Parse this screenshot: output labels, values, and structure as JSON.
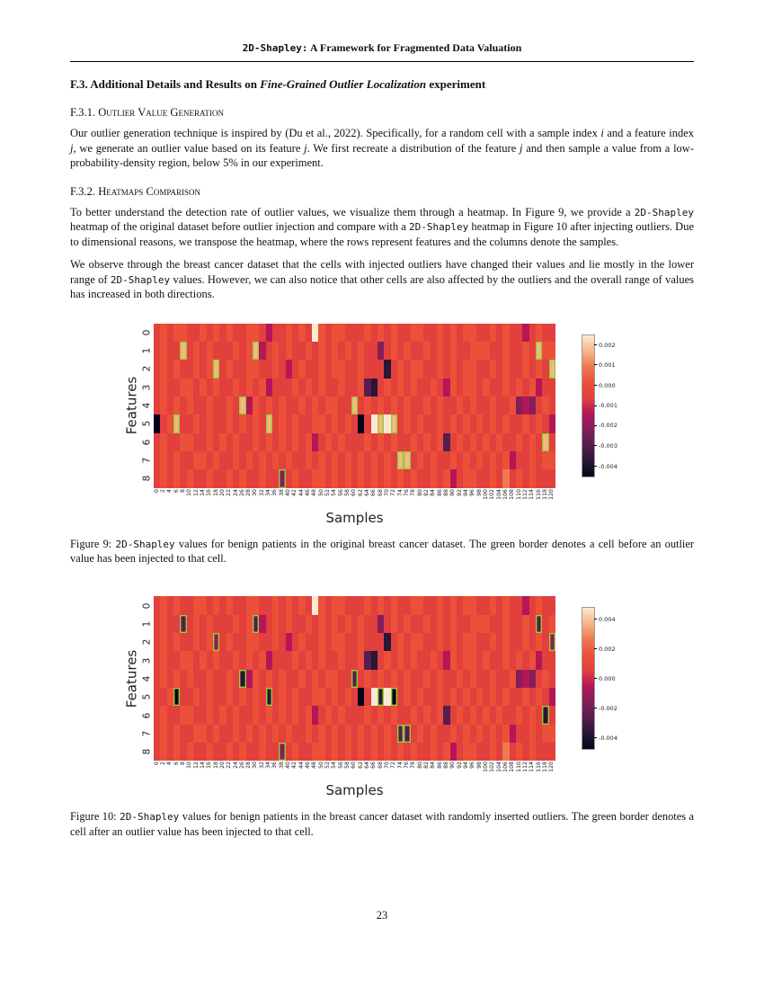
{
  "header": {
    "title_mono": "2D-Shapley:",
    "title_rest": " A Framework for Fragmented Data Valuation"
  },
  "section_f3": {
    "prefix": "F.3. Additional Details and Results on ",
    "italic": "Fine-Grained Outlier Localization",
    "suffix": " experiment"
  },
  "subsection_f31": {
    "number": "F.3.1. ",
    "title": "Outlier Value Generation"
  },
  "subsection_f32": {
    "number": "F.3.2. ",
    "title": "Heatmaps Comparison"
  },
  "paragraphs": {
    "p1": {
      "s1": "Our outlier generation technique is inspired by ",
      "cite": "(Du et al., 2022)",
      "s2": ". Specifically, for a random cell with a sample index ",
      "i1": "i",
      "s3": " and a feature index ",
      "j1": "j",
      "s4": ", we generate an outlier value based on its feature ",
      "j2": "j",
      "s5": ". We first recreate a distribution of the feature ",
      "j3": "j",
      "s6": " and then sample a value from a low-probability-density region, below 5% in our experiment."
    },
    "p2": {
      "s1": "To better understand the detection rate of outlier values, we visualize them through a heatmap. In Figure 9, we provide a ",
      "m1": "2D-Shapley",
      "s2": " heatmap of the original dataset before outlier injection and compare with a ",
      "m2": "2D-Shapley",
      "s3": " heatmap in Figure 10 after injecting outliers. Due to dimensional reasons, we transpose the heatmap, where the rows represent features and the columns denote the samples."
    },
    "p3": {
      "s1": "We observe through the breast cancer dataset that the cells with injected outliers have changed their values and lie mostly in the lower range of ",
      "m1": "2D-Shapley",
      "s2": " values. However, we can also notice that other cells are also affected by the outliers and the overall range of values has increased in both directions."
    }
  },
  "captions": {
    "fig9": {
      "s1": "Figure 9: ",
      "m1": "2D-Shapley",
      "s2": " values for benign patients in the original breast cancer dataset. The green border denotes a cell before an outlier value has been injected to that cell."
    },
    "fig10": {
      "s1": "Figure 10: ",
      "m1": "2D-Shapley",
      "s2": " values for benign patients in the breast cancer dataset with randomly inserted outliers. The green border denotes a cell after an outlier value has been injected to that cell."
    }
  },
  "page_number": "23",
  "palette": [
    "#03051a",
    "#2a1636",
    "#551e4f",
    "#841e5a",
    "#b41658",
    "#e2403d",
    "#ec5038",
    "#f0784f",
    "#f5b78a",
    "#fbe8d3"
  ],
  "outlier_border_color": "#9acd32",
  "chart_data": [
    {
      "type": "heatmap",
      "figure": "Figure 9",
      "xlabel": "Samples",
      "ylabel": "Features",
      "y_ticks": [
        "0",
        "1",
        "2",
        "3",
        "4",
        "5",
        "6",
        "7",
        "8"
      ],
      "x_ticks": [
        "0",
        "2",
        "4",
        "6",
        "8",
        "10",
        "12",
        "14",
        "16",
        "18",
        "20",
        "22",
        "24",
        "26",
        "28",
        "30",
        "32",
        "34",
        "36",
        "38",
        "40",
        "42",
        "44",
        "46",
        "48",
        "50",
        "52",
        "54",
        "56",
        "58",
        "60",
        "62",
        "64",
        "66",
        "68",
        "70",
        "72",
        "74",
        "76",
        "78",
        "80",
        "82",
        "84",
        "86",
        "88",
        "90",
        "92",
        "94",
        "96",
        "98",
        "100",
        "102",
        "104",
        "106",
        "108",
        "110",
        "112",
        "114",
        "116",
        "118",
        "120"
      ],
      "value_range": [
        -0.0045,
        0.0025
      ],
      "level_values": [
        -0.0045,
        -0.0035,
        -0.0025,
        -0.0015,
        -0.0005,
        0.0005,
        0.0008,
        0.0012,
        0.0018,
        0.0024
      ],
      "colorbar": {
        "gradient": [
          "#fbe8d3",
          "#f5b78a",
          "#f0784f",
          "#ec5038",
          "#e2403d",
          "#b41658",
          "#841e5a",
          "#551e4f",
          "#2a1636",
          "#03051a"
        ],
        "ticks": [
          {
            "label": "0.002",
            "pos": 7
          },
          {
            "label": "0.001",
            "pos": 21.3
          },
          {
            "label": "0.000",
            "pos": 35.7
          },
          {
            "label": "-0.001",
            "pos": 50
          },
          {
            "label": "-0.002",
            "pos": 64.3
          },
          {
            "label": "-0.003",
            "pos": 78.6
          },
          {
            "label": "-0.004",
            "pos": 93
          }
        ]
      },
      "cells": [
        [
          "5656655656",
          "5655665455",
          "6565965665",
          "5565656556",
          "6556565665",
          "5656554565",
          "5"
        ],
        [
          "5655856565",
          "5565684565",
          "6556565656",
          "5655356565",
          "5656565566",
          "6556556586",
          "6"
        ],
        [
          "5656556568",
          "5655665565",
          "4565565665",
          "5655515656",
          "6556565665",
          "5656556565",
          "8"
        ],
        [
          "5655665656",
          "5565656455",
          "5656565565",
          "5621565656",
          "5565465665",
          "6556565645",
          "5"
        ],
        [
          "5656565565",
          "5658465656",
          "5565656655",
          "8565656565",
          "5656556565",
          "5655634356",
          "5"
        ],
        [
          "0568556565",
          "5656565856",
          "5655665656",
          "5059898565",
          "6556565656",
          "5656556565",
          "4"
        ],
        [
          "5655665565",
          "6565565656",
          "5656456565",
          "5565656556",
          "5656256565",
          "6565565658",
          "5"
        ],
        [
          "5656556656",
          "5565656565",
          "6556565656",
          "5656565885",
          "6565565656",
          "5656455656",
          "6"
        ],
        [
          "5656565565",
          "5656556553",
          "5655665656",
          "5656565656",
          "5565645665",
          "5657565655",
          "5"
        ]
      ],
      "outlier_cells": [
        [
          1,
          4
        ],
        [
          1,
          15
        ],
        [
          1,
          58
        ],
        [
          2,
          9
        ],
        [
          2,
          60
        ],
        [
          4,
          13
        ],
        [
          4,
          30
        ],
        [
          5,
          3
        ],
        [
          5,
          17
        ],
        [
          5,
          34
        ],
        [
          5,
          36
        ],
        [
          6,
          59
        ],
        [
          7,
          37
        ],
        [
          7,
          38
        ],
        [
          8,
          19
        ]
      ]
    },
    {
      "type": "heatmap",
      "figure": "Figure 10",
      "xlabel": "Samples",
      "ylabel": "Features",
      "y_ticks": [
        "0",
        "1",
        "2",
        "3",
        "4",
        "5",
        "6",
        "7",
        "8"
      ],
      "x_ticks": [
        "0",
        "2",
        "4",
        "6",
        "8",
        "10",
        "12",
        "14",
        "16",
        "18",
        "20",
        "22",
        "24",
        "26",
        "28",
        "30",
        "32",
        "34",
        "36",
        "38",
        "40",
        "42",
        "44",
        "46",
        "48",
        "50",
        "52",
        "54",
        "56",
        "58",
        "60",
        "62",
        "64",
        "66",
        "68",
        "70",
        "72",
        "74",
        "76",
        "78",
        "80",
        "82",
        "84",
        "86",
        "88",
        "90",
        "92",
        "94",
        "96",
        "98",
        "100",
        "102",
        "104",
        "106",
        "108",
        "110",
        "112",
        "114",
        "116",
        "118",
        "120"
      ],
      "value_range": [
        -0.005,
        0.0045
      ],
      "level_values": [
        -0.005,
        -0.004,
        -0.003,
        -0.0015,
        -0.0005,
        0.0006,
        0.001,
        0.0018,
        0.003,
        0.0042
      ],
      "colorbar": {
        "gradient": [
          "#fbe8d3",
          "#f5b78a",
          "#f0784f",
          "#ec5038",
          "#e2403d",
          "#b41658",
          "#841e5a",
          "#551e4f",
          "#2a1636",
          "#03051a"
        ],
        "ticks": [
          {
            "label": "0.004",
            "pos": 8
          },
          {
            "label": "0.002",
            "pos": 29
          },
          {
            "label": "0.000",
            "pos": 50
          },
          {
            "label": "-0.002",
            "pos": 71
          },
          {
            "label": "-0.004",
            "pos": 92
          }
        ]
      },
      "cells": [
        [
          "5656556656",
          "5655665565",
          "6565965665",
          "5565656556",
          "6556565665",
          "5656554565",
          "5"
        ],
        [
          "5655256565",
          "5565624565",
          "6556565656",
          "5655356565",
          "5656565566",
          "6556556525",
          "6"
        ],
        [
          "5656556563",
          "5655665565",
          "4565565665",
          "5655515656",
          "6556565665",
          "5656556565",
          "3"
        ],
        [
          "5655665656",
          "5565656455",
          "5656565565",
          "5621565656",
          "5565465665",
          "6556565645",
          "5"
        ],
        [
          "5656565565",
          "5651465656",
          "5565656655",
          "2565656565",
          "5656556565",
          "5655634356",
          "5"
        ],
        [
          "5560556565",
          "5656565156",
          "5655665656",
          "5059190565",
          "6556565656",
          "5656556565",
          "4"
        ],
        [
          "5655665565",
          "6565565656",
          "5656456565",
          "5565656556",
          "5656256565",
          "6565565651",
          "5"
        ],
        [
          "5656556656",
          "5565656565",
          "6556565656",
          "5656565225",
          "6565565656",
          "5656455656",
          "6"
        ],
        [
          "5656565565",
          "5656556553",
          "5655665656",
          "5656565656",
          "5565645665",
          "5657565655",
          "5"
        ]
      ],
      "outlier_cells": [
        [
          1,
          4
        ],
        [
          1,
          15
        ],
        [
          1,
          58
        ],
        [
          2,
          9
        ],
        [
          2,
          60
        ],
        [
          4,
          13
        ],
        [
          4,
          30
        ],
        [
          5,
          3
        ],
        [
          5,
          17
        ],
        [
          5,
          34
        ],
        [
          5,
          36
        ],
        [
          6,
          59
        ],
        [
          7,
          37
        ],
        [
          7,
          38
        ],
        [
          8,
          19
        ]
      ]
    }
  ]
}
